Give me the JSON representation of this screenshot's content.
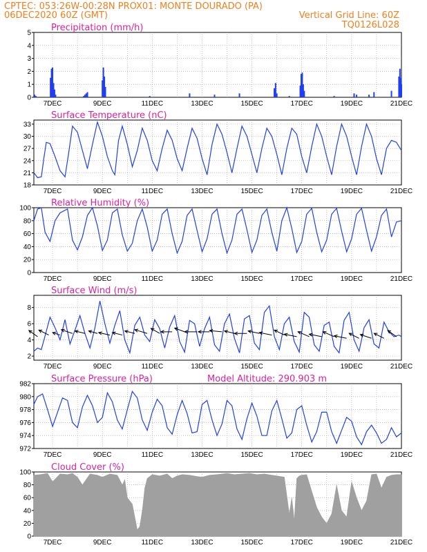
{
  "header": {
    "line1_left": "CPTEC:   053:26W-00:28N   PROX01: MONTE DOURADO (PA)",
    "line2_left": "06DEC2020 60Z (GMT)",
    "line2_right": "Vertical Grid Line: 60Z",
    "line3_right": "TQ0126L028"
  },
  "colors": {
    "header": "#f08020",
    "panel_title": "#e0209a",
    "series": "#1f3ff0",
    "cloud": "#a0a0a0",
    "grid": "#999999"
  },
  "x_axis": {
    "labels": [
      "7DEC",
      "9DEC",
      "11DEC",
      "13DEC",
      "15DEC",
      "17DEC",
      "19DEC",
      "21DEC"
    ],
    "start_day": 6.25,
    "end_day": 21.0
  },
  "chart_data": [
    {
      "id": "precipitation",
      "type": "bar",
      "title": "Precipitation (mm/h)",
      "ylim": [
        0,
        5
      ],
      "yticks": [
        0,
        1,
        2,
        3,
        4,
        5
      ],
      "x_days": [
        6.28,
        6.33,
        6.92,
        6.96,
        7.0,
        7.04,
        7.08,
        7.12,
        8.25,
        8.3,
        8.35,
        8.4,
        9.0,
        9.04,
        9.08,
        9.12,
        10.9,
        12.5,
        13.5,
        14.5,
        15.9,
        15.95,
        16.0,
        16.5,
        16.94,
        16.98,
        17.02,
        17.06,
        17.1,
        18.3,
        19.1,
        19.2,
        19.7,
        19.9,
        20.6,
        20.9,
        20.94,
        20.98,
        21.0
      ],
      "values": [
        0.2,
        0.1,
        1.5,
        2.2,
        2.3,
        1.1,
        0.6,
        0.2,
        0.1,
        0.2,
        0.3,
        0.4,
        1.3,
        2.3,
        1.6,
        0.8,
        0.1,
        0.3,
        0.2,
        0.3,
        0.7,
        1.1,
        0.3,
        0.1,
        0.9,
        1.8,
        1.9,
        1.0,
        0.5,
        0.1,
        0.3,
        0.2,
        0.2,
        0.4,
        0.5,
        1.6,
        2.2,
        1.5,
        1.0
      ]
    },
    {
      "id": "temperature",
      "type": "line",
      "title": "Surface Temperature (nC)",
      "ylim": [
        18,
        34
      ],
      "yticks": [
        18,
        21,
        24,
        27,
        30,
        33
      ],
      "x_days": [
        6.25,
        6.4,
        6.55,
        6.65,
        6.75,
        6.9,
        7.1,
        7.3,
        7.5,
        7.65,
        7.8,
        8.0,
        8.2,
        8.4,
        8.6,
        8.8,
        9.0,
        9.2,
        9.4,
        9.5,
        9.65,
        9.8,
        10.0,
        10.2,
        10.4,
        10.6,
        10.8,
        11.0,
        11.2,
        11.4,
        11.6,
        11.8,
        12.0,
        12.2,
        12.4,
        12.6,
        12.8,
        13.0,
        13.2,
        13.4,
        13.6,
        13.8,
        14.0,
        14.2,
        14.4,
        14.6,
        14.8,
        15.0,
        15.2,
        15.4,
        15.6,
        15.8,
        16.0,
        16.2,
        16.4,
        16.6,
        16.8,
        17.0,
        17.2,
        17.4,
        17.6,
        17.8,
        18.0,
        18.2,
        18.4,
        18.6,
        18.8,
        19.0,
        19.2,
        19.4,
        19.6,
        19.8,
        20.0,
        20.2,
        20.4,
        20.6,
        20.8,
        21.0
      ],
      "values": [
        21.0,
        19.8,
        20.0,
        24.5,
        28.5,
        28.2,
        25.0,
        21.5,
        20.0,
        26.0,
        32.5,
        31.0,
        26.5,
        22.0,
        28.0,
        33.5,
        30.0,
        25.0,
        21.5,
        20.5,
        29.0,
        32.5,
        28.0,
        22.5,
        26.5,
        32.0,
        29.0,
        24.0,
        21.5,
        27.0,
        31.5,
        29.0,
        24.5,
        21.5,
        27.0,
        32.0,
        29.5,
        24.5,
        20.5,
        28.0,
        33.0,
        30.5,
        26.0,
        21.0,
        27.0,
        32.5,
        30.0,
        25.5,
        21.0,
        27.0,
        32.0,
        30.0,
        25.5,
        20.5,
        27.0,
        32.0,
        30.5,
        25.0,
        21.0,
        27.5,
        33.0,
        30.0,
        25.0,
        20.5,
        27.5,
        33.0,
        30.0,
        25.0,
        20.5,
        27.5,
        33.0,
        30.0,
        24.5,
        20.5,
        27.0,
        29.0,
        28.5,
        26.5
      ]
    },
    {
      "id": "humidity",
      "type": "line",
      "title": "Relative Humidity (%)",
      "ylim": [
        0,
        100
      ],
      "yticks": [
        0,
        20,
        40,
        60,
        80,
        100
      ],
      "x_days": [
        6.25,
        6.4,
        6.55,
        6.7,
        6.9,
        7.1,
        7.3,
        7.6,
        7.8,
        8.0,
        8.2,
        8.4,
        8.6,
        8.8,
        9.0,
        9.2,
        9.4,
        9.6,
        9.8,
        10.0,
        10.2,
        10.4,
        10.6,
        10.8,
        11.0,
        11.2,
        11.4,
        11.6,
        11.8,
        12.0,
        12.2,
        12.4,
        12.6,
        12.8,
        13.0,
        13.2,
        13.4,
        13.6,
        13.8,
        14.0,
        14.2,
        14.4,
        14.6,
        14.8,
        15.0,
        15.2,
        15.4,
        15.6,
        15.8,
        16.0,
        16.2,
        16.4,
        16.6,
        16.8,
        17.0,
        17.2,
        17.4,
        17.6,
        17.8,
        18.0,
        18.2,
        18.4,
        18.6,
        18.8,
        19.0,
        19.2,
        19.4,
        19.6,
        19.8,
        20.0,
        20.2,
        20.4,
        20.6,
        20.8,
        21.0
      ],
      "values": [
        80,
        98,
        100,
        62,
        48,
        80,
        92,
        98,
        50,
        35,
        55,
        88,
        100,
        72,
        34,
        50,
        92,
        98,
        58,
        33,
        45,
        80,
        98,
        70,
        33,
        50,
        90,
        98,
        60,
        30,
        48,
        88,
        98,
        65,
        32,
        52,
        90,
        98,
        60,
        30,
        50,
        90,
        98,
        66,
        31,
        50,
        88,
        98,
        62,
        33,
        80,
        100,
        68,
        31,
        48,
        90,
        99,
        62,
        32,
        50,
        90,
        99,
        64,
        32,
        52,
        90,
        99,
        65,
        33,
        55,
        88,
        98,
        55,
        78,
        80
      ]
    },
    {
      "id": "wind",
      "type": "line",
      "title": "Surface Wind (m/s)",
      "ylim": [
        1.5,
        9.5
      ],
      "yticks": [
        2,
        4,
        6,
        8
      ],
      "x_days": [
        6.25,
        6.4,
        6.55,
        6.7,
        6.9,
        7.1,
        7.3,
        7.5,
        7.7,
        7.9,
        8.1,
        8.3,
        8.5,
        8.7,
        8.9,
        9.1,
        9.3,
        9.5,
        9.7,
        9.9,
        10.1,
        10.3,
        10.5,
        10.7,
        10.9,
        11.1,
        11.3,
        11.5,
        11.7,
        11.9,
        12.1,
        12.3,
        12.5,
        12.7,
        12.9,
        13.1,
        13.3,
        13.5,
        13.7,
        13.9,
        14.1,
        14.3,
        14.5,
        14.7,
        14.9,
        15.1,
        15.3,
        15.5,
        15.7,
        15.9,
        16.1,
        16.3,
        16.5,
        16.7,
        16.9,
        17.1,
        17.3,
        17.5,
        17.7,
        17.9,
        18.1,
        18.3,
        18.5,
        18.7,
        18.9,
        19.1,
        19.3,
        19.5,
        19.7,
        19.9,
        20.1,
        20.3,
        20.5,
        20.7,
        20.9,
        21.0
      ],
      "values": [
        2.6,
        3.0,
        2.8,
        4.5,
        6.8,
        5.5,
        4.0,
        6.5,
        3.5,
        5.2,
        7.0,
        4.8,
        3.0,
        5.5,
        8.8,
        6.0,
        3.6,
        5.8,
        7.6,
        4.0,
        2.4,
        5.8,
        6.8,
        4.6,
        3.8,
        6.5,
        5.4,
        3.0,
        5.6,
        7.0,
        3.8,
        2.5,
        6.4,
        6.0,
        3.2,
        5.4,
        6.8,
        3.4,
        2.6,
        6.0,
        7.2,
        4.2,
        2.4,
        6.6,
        7.0,
        3.6,
        2.8,
        7.4,
        8.2,
        4.4,
        2.8,
        6.0,
        6.8,
        3.8,
        2.5,
        7.4,
        6.8,
        3.4,
        2.6,
        5.8,
        6.2,
        3.2,
        2.4,
        6.4,
        7.4,
        4.0,
        2.6,
        5.5,
        6.5,
        3.5,
        3.0,
        6.2,
        5.0,
        4.4,
        4.6,
        4.4
      ]
    },
    {
      "id": "pressure",
      "type": "line",
      "title": "Surface Pressure (hPa)",
      "subtitle": "Model Altitude: 290.903 m",
      "ylim": [
        972,
        982
      ],
      "yticks": [
        972,
        974,
        976,
        978,
        980,
        982
      ],
      "x_days": [
        6.25,
        6.4,
        6.6,
        6.8,
        7.0,
        7.2,
        7.4,
        7.6,
        7.8,
        8.0,
        8.2,
        8.4,
        8.6,
        8.8,
        9.0,
        9.2,
        9.4,
        9.6,
        9.8,
        10.0,
        10.2,
        10.4,
        10.6,
        10.8,
        11.0,
        11.2,
        11.4,
        11.6,
        11.8,
        12.0,
        12.2,
        12.4,
        12.6,
        12.8,
        13.0,
        13.2,
        13.4,
        13.6,
        13.8,
        14.0,
        14.2,
        14.4,
        14.6,
        14.8,
        15.0,
        15.2,
        15.4,
        15.6,
        15.8,
        16.0,
        16.2,
        16.4,
        16.6,
        16.8,
        17.0,
        17.2,
        17.4,
        17.6,
        17.8,
        18.0,
        18.2,
        18.4,
        18.6,
        18.8,
        19.0,
        19.2,
        19.4,
        19.6,
        19.8,
        20.0,
        20.2,
        20.4,
        20.6,
        20.8,
        21.0
      ],
      "values": [
        978.8,
        980.0,
        980.4,
        978.0,
        975.4,
        977.6,
        979.8,
        979.4,
        976.0,
        975.2,
        978.4,
        980.2,
        978.6,
        976.0,
        976.8,
        980.6,
        979.2,
        976.4,
        975.0,
        978.0,
        980.8,
        979.8,
        976.4,
        974.8,
        977.6,
        979.6,
        978.6,
        975.2,
        974.2,
        977.2,
        979.4,
        977.4,
        974.4,
        974.6,
        978.8,
        979.4,
        976.4,
        974.0,
        975.8,
        979.4,
        978.6,
        975.0,
        973.4,
        976.6,
        979.0,
        977.0,
        974.0,
        974.0,
        977.8,
        979.4,
        976.6,
        973.6,
        974.4,
        978.0,
        978.6,
        975.6,
        973.0,
        974.6,
        977.6,
        977.6,
        974.6,
        972.8,
        974.8,
        976.8,
        976.2,
        973.8,
        972.6,
        974.6,
        975.6,
        974.4,
        972.8,
        973.4,
        975.2,
        973.8,
        974.4
      ]
    },
    {
      "id": "cloud",
      "type": "area",
      "title": "Cloud Cover (%)",
      "ylim": [
        0,
        100
      ],
      "yticks": [
        0,
        20,
        40,
        60,
        80,
        100
      ],
      "x_days": [
        6.25,
        6.5,
        6.8,
        7.0,
        7.3,
        7.6,
        7.8,
        8.0,
        8.2,
        8.5,
        8.8,
        9.0,
        9.3,
        9.6,
        9.8,
        9.9,
        10.0,
        10.1,
        10.2,
        10.3,
        10.4,
        10.5,
        10.6,
        10.7,
        10.8,
        11.0,
        11.3,
        11.6,
        11.8,
        12.0,
        12.2,
        12.5,
        12.8,
        13.0,
        13.3,
        13.6,
        13.8,
        14.0,
        14.3,
        14.6,
        14.9,
        15.2,
        15.5,
        15.8,
        16.0,
        16.3,
        16.5,
        16.6,
        16.7,
        16.8,
        16.9,
        17.0,
        17.2,
        17.4,
        17.6,
        17.8,
        18.0,
        18.2,
        18.4,
        18.5,
        18.6,
        18.8,
        19.0,
        19.2,
        19.4,
        19.6,
        19.8,
        20.0,
        20.2,
        20.4,
        20.6,
        20.8,
        21.0
      ],
      "values": [
        95,
        96,
        98,
        85,
        97,
        96,
        98,
        92,
        80,
        97,
        95,
        92,
        97,
        95,
        80,
        88,
        60,
        55,
        50,
        30,
        10,
        15,
        40,
        75,
        90,
        96,
        94,
        97,
        90,
        94,
        96,
        95,
        93,
        92,
        95,
        96,
        97,
        98,
        96,
        97,
        98,
        96,
        97,
        95,
        94,
        92,
        35,
        60,
        25,
        90,
        94,
        95,
        96,
        70,
        45,
        30,
        20,
        35,
        80,
        60,
        40,
        30,
        85,
        60,
        40,
        55,
        96,
        97,
        75,
        92,
        95,
        96,
        96
      ]
    }
  ],
  "wind_arrows": {
    "x_days": [
      6.4,
      6.85,
      7.3,
      7.8,
      8.3,
      8.8,
      9.3,
      9.8,
      10.3,
      10.8,
      11.3,
      11.8,
      12.3,
      12.8,
      13.3,
      13.8,
      14.3,
      14.8,
      15.3,
      15.8,
      16.3,
      16.8,
      17.3,
      17.8,
      18.3,
      18.8,
      19.3,
      19.8,
      20.3,
      20.8
    ],
    "y_values": [
      4.4,
      4.6,
      4.6,
      4.8,
      4.8,
      4.8,
      4.6,
      4.6,
      4.8,
      4.8,
      4.8,
      5.0,
      5.0,
      5.0,
      5.0,
      5.0,
      4.8,
      4.8,
      4.8,
      4.6,
      4.6,
      4.4,
      4.4,
      4.4,
      4.4,
      4.2,
      4.2,
      4.2,
      4.2,
      4.4
    ],
    "u": [
      -0.7,
      -0.8,
      -0.6,
      -0.9,
      -0.8,
      -0.7,
      -0.9,
      -0.8,
      -0.8,
      -1.0,
      -0.7,
      -0.9,
      -0.8,
      -1.0,
      -0.9,
      -1.0,
      -0.8,
      -1.0,
      -0.9,
      -1.0,
      -0.8,
      -1.0,
      -0.9,
      -1.0,
      -0.9,
      -1.0,
      -0.8,
      -0.9,
      -0.8,
      -0.7
    ],
    "v": [
      0.5,
      0.4,
      0.2,
      0.3,
      0.2,
      0.2,
      0.2,
      0.2,
      0.2,
      0.3,
      0.4,
      0.0,
      0.3,
      0.0,
      0.0,
      0.1,
      0.2,
      0.0,
      0.2,
      0.2,
      0.4,
      0.2,
      0.4,
      0.2,
      0.4,
      0.2,
      0.4,
      0.3,
      0.4,
      0.5
    ]
  }
}
